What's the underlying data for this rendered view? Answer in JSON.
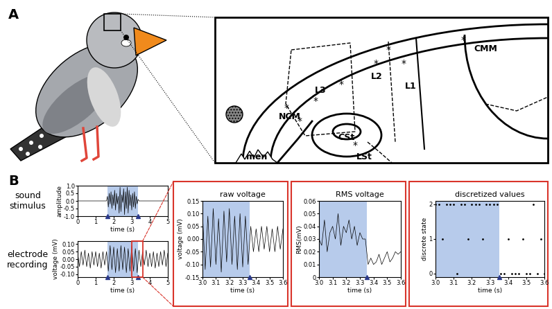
{
  "panel_a": {
    "label": "A",
    "regions": [
      "CMM",
      "L1",
      "L2",
      "L3",
      "NCM",
      "CSt",
      "LSt",
      "men"
    ],
    "asterisk": "*"
  },
  "panel_b": {
    "label": "B",
    "row_labels": [
      "sound stimulus",
      "electrode recording"
    ],
    "stimulus_interval": [
      1.65,
      3.35
    ]
  },
  "chart_data": [
    {
      "type": "line",
      "xlabel": "time (s)",
      "ylabel": "amplitude",
      "color": "#000000",
      "x": [
        0,
        1.6,
        1.65,
        1.7,
        1.75,
        1.8,
        1.85,
        1.9,
        1.95,
        2.0,
        2.05,
        2.1,
        2.15,
        2.2,
        2.25,
        2.3,
        2.35,
        2.4,
        2.45,
        2.5,
        2.55,
        2.6,
        2.65,
        2.7,
        2.75,
        2.8,
        2.85,
        2.9,
        2.95,
        3.0,
        3.05,
        3.1,
        3.15,
        3.2,
        3.25,
        3.3,
        3.35,
        3.4,
        5
      ],
      "values": [
        0,
        0,
        0.3,
        -0.4,
        0.5,
        -0.2,
        0.6,
        -0.5,
        0.4,
        -0.3,
        0.7,
        -0.6,
        0.5,
        -0.2,
        0.3,
        -0.8,
        0.9,
        -0.7,
        0.4,
        -0.1,
        0.8,
        -0.9,
        0.6,
        -0.5,
        0.9,
        -0.8,
        0.7,
        -0.3,
        0.4,
        -0.6,
        0.5,
        -0.4,
        0.6,
        -0.5,
        0.3,
        -0.2,
        0.1,
        0,
        0
      ],
      "xlim": [
        0,
        5
      ],
      "ylim": [
        -1.0,
        1.0
      ],
      "xticks": [
        0,
        1,
        2,
        3,
        4,
        5
      ],
      "yticks": [
        -1.0,
        -0.5,
        0.0,
        0.5,
        1.0
      ]
    },
    {
      "type": "line",
      "xlabel": "time (s)",
      "ylabel": "voltage (mV)",
      "color": "#000000",
      "x": [
        0.0,
        0.1,
        0.2,
        0.3,
        0.4,
        0.5,
        0.6,
        0.7,
        0.8,
        0.9,
        1.0,
        1.1,
        1.2,
        1.3,
        1.4,
        1.5,
        1.6,
        1.7,
        1.8,
        1.9,
        2.0,
        2.1,
        2.2,
        2.3,
        2.4,
        2.5,
        2.6,
        2.7,
        2.8,
        2.9,
        3.0,
        3.1,
        3.2,
        3.3,
        3.4,
        3.5,
        3.6,
        3.7,
        3.8,
        3.9,
        4.0,
        4.1,
        4.2,
        4.3,
        4.4,
        4.5,
        4.6,
        4.7,
        4.8,
        4.9,
        5.0
      ],
      "values": [
        0.04,
        -0.05,
        0.05,
        -0.04,
        0.06,
        -0.05,
        0.04,
        -0.06,
        0.05,
        -0.04,
        0.05,
        -0.05,
        0.04,
        -0.06,
        0.05,
        -0.04,
        0.05,
        -0.08,
        0.09,
        -0.07,
        0.08,
        -0.09,
        0.07,
        -0.08,
        0.09,
        -0.07,
        0.08,
        -0.09,
        0.07,
        -0.08,
        0.09,
        -0.08,
        0.07,
        -0.09,
        0.06,
        -0.05,
        0.05,
        -0.04,
        0.06,
        -0.05,
        0.04,
        -0.05,
        0.05,
        -0.06,
        0.04,
        -0.05,
        0.05,
        -0.04,
        0.06,
        -0.05,
        0.04
      ],
      "xlim": [
        0,
        5
      ],
      "ylim": [
        -0.12,
        0.12
      ],
      "xticks": [
        0,
        1,
        2,
        3,
        4,
        5
      ],
      "yticks": [
        {
          "value": -0.1,
          "label": "-0.10"
        },
        {
          "value": -0.05,
          "label": "-0.05"
        },
        {
          "value": 0,
          "label": "0.00"
        },
        {
          "value": 0.05,
          "label": "0.05"
        },
        {
          "value": 0.1,
          "label": "0.10"
        }
      ]
    },
    {
      "type": "line",
      "title": "raw voltage",
      "xlabel": "time (s)",
      "ylabel": "voltage (mV)",
      "color": "#000000",
      "x": [
        3.0,
        3.02,
        3.04,
        3.06,
        3.08,
        3.1,
        3.12,
        3.14,
        3.16,
        3.18,
        3.2,
        3.22,
        3.24,
        3.26,
        3.28,
        3.3,
        3.32,
        3.34,
        3.36,
        3.38,
        3.4,
        3.42,
        3.44,
        3.46,
        3.48,
        3.5,
        3.52,
        3.54,
        3.56,
        3.58,
        3.6
      ],
      "values": [
        0.1,
        -0.12,
        0.09,
        -0.11,
        0.12,
        -0.1,
        0.08,
        -0.13,
        0.11,
        -0.09,
        0.12,
        -0.1,
        0.09,
        -0.12,
        0.1,
        -0.11,
        0.09,
        -0.1,
        0.05,
        -0.05,
        0.04,
        -0.05,
        0.05,
        -0.04,
        0.05,
        -0.05,
        0.04,
        -0.05,
        0.05,
        -0.04,
        0.04
      ],
      "xlim": [
        3.0,
        3.6
      ],
      "ylim": [
        -0.15,
        0.15
      ],
      "xticks": [
        3.0,
        3.1,
        3.2,
        3.3,
        3.4,
        3.5,
        3.6
      ],
      "yticks": [
        {
          "value": -0.15,
          "label": "-0.15"
        },
        {
          "value": -0.1,
          "label": "-0.10"
        },
        {
          "value": -0.05,
          "label": "-0.05"
        },
        {
          "value": 0,
          "label": "0.00"
        },
        {
          "value": 0.05,
          "label": "0.05"
        },
        {
          "value": 0.1,
          "label": "0.10"
        },
        {
          "value": 0.15,
          "label": "0.15"
        }
      ]
    },
    {
      "type": "line",
      "title": "RMS voltage",
      "xlabel": "time (s)",
      "ylabel": "RMS(mV)",
      "color": "#000000",
      "x": [
        3.0,
        3.02,
        3.04,
        3.06,
        3.08,
        3.1,
        3.12,
        3.14,
        3.16,
        3.18,
        3.2,
        3.22,
        3.24,
        3.26,
        3.28,
        3.3,
        3.32,
        3.34,
        3.36,
        3.38,
        3.4,
        3.42,
        3.44,
        3.46,
        3.48,
        3.5,
        3.52,
        3.54,
        3.56,
        3.58,
        3.6
      ],
      "values": [
        0.03,
        0.025,
        0.045,
        0.02,
        0.035,
        0.04,
        0.03,
        0.05,
        0.025,
        0.04,
        0.035,
        0.045,
        0.03,
        0.04,
        0.025,
        0.035,
        0.03,
        0.03,
        0.01,
        0.015,
        0.01,
        0.012,
        0.018,
        0.01,
        0.015,
        0.02,
        0.012,
        0.015,
        0.02,
        0.018,
        0.02
      ],
      "xlim": [
        3.0,
        3.6
      ],
      "ylim": [
        0,
        0.06
      ],
      "xticks": [
        3.0,
        3.1,
        3.2,
        3.3,
        3.4,
        3.5,
        3.6
      ],
      "yticks": [
        0,
        0.01,
        0.02,
        0.03,
        0.04,
        0.05,
        0.06
      ]
    },
    {
      "type": "scatter",
      "title": "discretized values",
      "xlabel": "time (s)",
      "ylabel": "discrete state",
      "color": "#000000",
      "marker": ".",
      "x": [
        3.0,
        3.02,
        3.04,
        3.06,
        3.08,
        3.1,
        3.12,
        3.14,
        3.16,
        3.18,
        3.2,
        3.22,
        3.24,
        3.26,
        3.28,
        3.3,
        3.32,
        3.34,
        3.36,
        3.38,
        3.4,
        3.42,
        3.44,
        3.46,
        3.48,
        3.5,
        3.52,
        3.54,
        3.56,
        3.58,
        3.6
      ],
      "values": [
        2,
        2,
        1,
        2,
        2,
        2,
        0,
        2,
        2,
        1,
        2,
        2,
        2,
        1,
        2,
        2,
        2,
        2,
        0,
        0,
        1,
        0,
        0,
        0,
        1,
        0,
        0,
        2,
        0,
        1,
        0
      ],
      "xlim": [
        3.0,
        3.6
      ],
      "ylim": [
        -0.1,
        2.1
      ],
      "xticks": [
        3.0,
        3.1,
        3.2,
        3.3,
        3.4,
        3.5,
        3.6
      ],
      "yticks": [
        0,
        1,
        2
      ]
    }
  ]
}
